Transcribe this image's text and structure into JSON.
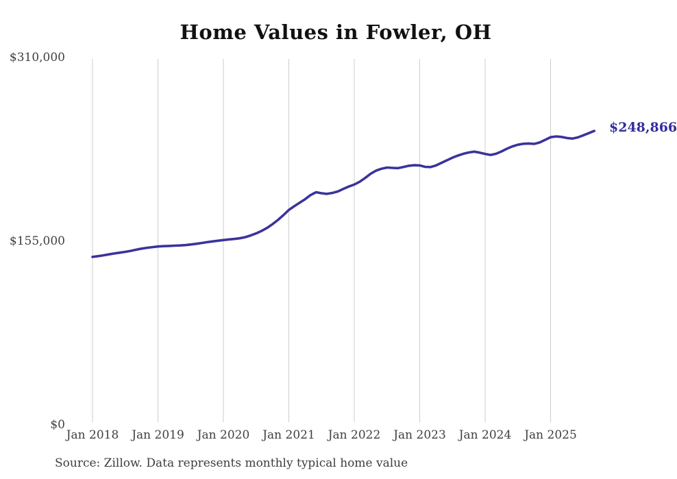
{
  "chart": {
    "title": "Home Values in Fowler, OH",
    "end_label": "$248,866",
    "source": "Source: Zillow. Data represents monthly typical home value"
  },
  "chart_data": {
    "type": "line",
    "title": "Home Values in Fowler, OH",
    "series_name": "Monthly typical home value",
    "x_start_month": "Jan 2018",
    "x_end_month": "Sep 2025",
    "x_tick_labels": [
      "Jan 2018",
      "Jan 2019",
      "Jan 2020",
      "Jan 2021",
      "Jan 2022",
      "Jan 2023",
      "Jan 2024",
      "Jan 2025"
    ],
    "y_tick_labels": [
      "$310,000",
      "$155,000",
      "$0"
    ],
    "y_tick_values": [
      310000,
      155000,
      0
    ],
    "ylim": [
      0,
      310000
    ],
    "grid": "vertical-only",
    "legend": "none",
    "end_value": 248866,
    "end_value_label": "$248,866",
    "source": "Source: Zillow. Data represents monthly typical home value",
    "colors": {
      "line": "#3a339c",
      "end_label": "#332d9e",
      "grid": "#cccccc",
      "tick_text": "#3f3f3f",
      "title_text": "#111111"
    },
    "values_monthly": [
      142000,
      142600,
      143300,
      144100,
      144900,
      145600,
      146300,
      147100,
      148100,
      149000,
      149700,
      150300,
      150800,
      151100,
      151300,
      151500,
      151700,
      152000,
      152500,
      153100,
      153800,
      154500,
      155100,
      155700,
      156300,
      156800,
      157200,
      157800,
      158700,
      160200,
      161900,
      164000,
      166600,
      169700,
      173300,
      177400,
      181800,
      185000,
      188000,
      191000,
      194500,
      196900,
      196000,
      195500,
      196300,
      197500,
      199700,
      201700,
      203400,
      205800,
      209000,
      212500,
      215200,
      216800,
      217800,
      217500,
      217300,
      218300,
      219300,
      219800,
      219600,
      218400,
      218200,
      219600,
      221800,
      224000,
      226200,
      228000,
      229500,
      230600,
      231300,
      230500,
      229400,
      228500,
      229500,
      231500,
      233800,
      235800,
      237200,
      238000,
      238200,
      237900,
      239100,
      241300,
      243600,
      244200,
      243800,
      242900,
      242400,
      243400,
      245200,
      247000,
      248866
    ]
  }
}
